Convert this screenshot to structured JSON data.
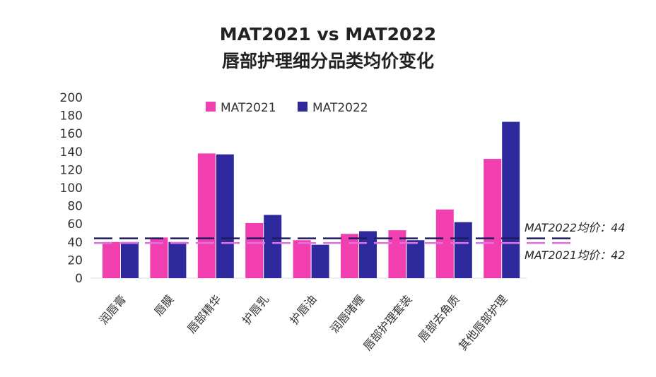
{
  "chart_data": {
    "type": "bar",
    "title": "MAT2021 vs MAT2022",
    "subtitle": "唇部护理细分品类均价变化",
    "categories": [
      "润唇膏",
      "唇膜",
      "唇部精华",
      "护唇乳",
      "护唇油",
      "润唇啫喱",
      "唇部护理套装",
      "唇部去角质",
      "其他唇部护理"
    ],
    "series": [
      {
        "name": "MAT2021",
        "color": "#f23fb0",
        "values": [
          40,
          45,
          138,
          61,
          42,
          49,
          53,
          76,
          132
        ]
      },
      {
        "name": "MAT2022",
        "color": "#2e2a9e",
        "values": [
          40,
          40,
          137,
          70,
          37,
          52,
          42,
          62,
          173
        ]
      }
    ],
    "reference_lines": [
      {
        "label": "MAT2022均价：44",
        "value": 44,
        "color": "#1e1a5e",
        "style": "dashed"
      },
      {
        "label": "MAT2021均价：42",
        "value": 42,
        "color": "#e070e0",
        "style": "dashed"
      }
    ],
    "yticks": [
      "0",
      "20",
      "40",
      "60",
      "80",
      "100",
      "120",
      "140",
      "160",
      "180",
      "200"
    ],
    "ylim": [
      0,
      200
    ],
    "grid": false,
    "legend": "top"
  }
}
